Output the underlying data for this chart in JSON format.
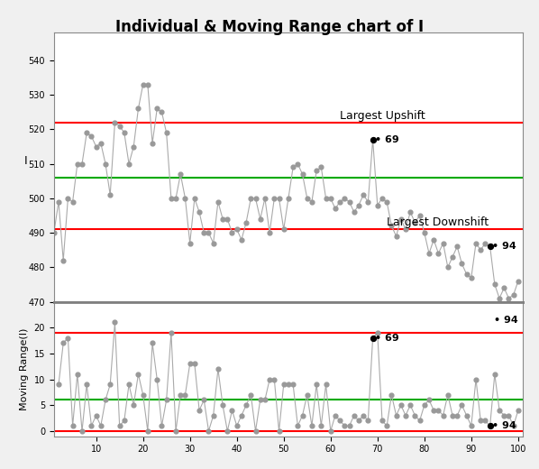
{
  "title": "Individual & Moving Range chart of I",
  "i_values": [
    490,
    499,
    482,
    500,
    499,
    510,
    510,
    519,
    518,
    515,
    516,
    510,
    501,
    522,
    521,
    519,
    510,
    515,
    526,
    533,
    533,
    516,
    526,
    525,
    519,
    500,
    500,
    507,
    500,
    487,
    500,
    496,
    490,
    490,
    487,
    499,
    494,
    494,
    490,
    491,
    488,
    493,
    500,
    500,
    494,
    500,
    490,
    500,
    500,
    491,
    500,
    509,
    510,
    507,
    500,
    499,
    508,
    509,
    500,
    500,
    497,
    499,
    500,
    499,
    496,
    498,
    501,
    499,
    517,
    498,
    500,
    499,
    492,
    489,
    494,
    491,
    496,
    493,
    495,
    490,
    484,
    488,
    484,
    487,
    480,
    483,
    486,
    481,
    478,
    477,
    487,
    485,
    487,
    486,
    475,
    471,
    474,
    471,
    472,
    476
  ],
  "mr_values": [
    null,
    9,
    17,
    18,
    1,
    11,
    0,
    9,
    1,
    3,
    1,
    6,
    9,
    21,
    1,
    2,
    9,
    5,
    11,
    7,
    0,
    17,
    10,
    1,
    6,
    19,
    0,
    7,
    7,
    13,
    13,
    4,
    6,
    0,
    3,
    12,
    5,
    0,
    4,
    1,
    3,
    5,
    7,
    0,
    6,
    6,
    10,
    10,
    0,
    9,
    9,
    9,
    1,
    3,
    7,
    1,
    9,
    1,
    9,
    0,
    3,
    2,
    1,
    1,
    3,
    2,
    3,
    2,
    18,
    19,
    2,
    1,
    7,
    3,
    5,
    3,
    5,
    3,
    2,
    5,
    6,
    4,
    4,
    3,
    7,
    3,
    3,
    5,
    3,
    1,
    10,
    2,
    2,
    1,
    11,
    4,
    3,
    3,
    1,
    4
  ],
  "i_ucl": 522,
  "i_cl": 506,
  "i_lcl": 491,
  "mr_ucl": 19,
  "mr_cl": 6,
  "mr_lcl": 0,
  "i_ylim": [
    470,
    548
  ],
  "mr_ylim": [
    -1,
    25
  ],
  "i_yticks": [
    470,
    480,
    490,
    500,
    510,
    520,
    530,
    540
  ],
  "mr_yticks": [
    0,
    5,
    10,
    15,
    20
  ],
  "xticks": [
    10,
    20,
    30,
    40,
    50,
    60,
    70,
    80,
    90,
    100
  ],
  "upshift_idx": 69,
  "upshift_label": "69",
  "downshift_idx": 94,
  "downshift_label": "94",
  "mr_upshift_idx": 69,
  "mr_upshift_label": "69",
  "mr_downshift_idx": 94,
  "mr_downshift_label": "94",
  "line_color": "#aaaaaa",
  "dot_color": "#999999",
  "special_dot_color": "#000000",
  "ucl_color": "#ff0000",
  "cl_color": "#00aa00",
  "lcl_color": "#ff0000",
  "bg_color": "#f0f0f0",
  "plot_bg_color": "#ffffff",
  "ylabel_i": "I",
  "ylabel_mr": "Moving Range(I)",
  "divider_color": "#808080",
  "annotation_largest_upshift": "Largest Upshift",
  "annotation_largest_downshift": "Largest Downshift"
}
